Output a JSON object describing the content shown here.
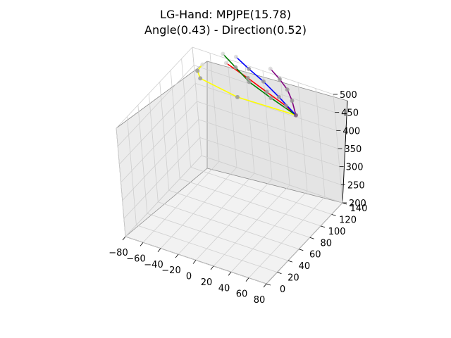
{
  "chart_data": {
    "type": "scatter",
    "projection": "3d",
    "title_lines": [
      "LG-Hand: MPJPE(15.78)",
      "Angle(0.43) - Direction(0.52)"
    ],
    "xlabel": "",
    "ylabel": "",
    "zlabel": "",
    "xlim": [
      -80,
      80
    ],
    "ylim": [
      0,
      140
    ],
    "zlim": [
      200,
      500
    ],
    "x_ticks": [
      "−80",
      "−60",
      "−40",
      "−20",
      "0",
      "20",
      "40",
      "60",
      "80"
    ],
    "y_ticks": [
      "0",
      "20",
      "40",
      "60",
      "80",
      "100",
      "120",
      "140"
    ],
    "z_ticks": [
      "200",
      "250",
      "300",
      "350",
      "400",
      "450",
      "500"
    ],
    "grid": true,
    "wrist": [
      55,
      110,
      470
    ],
    "series": [
      {
        "color": "#ffff00",
        "points": [
          [
            55,
            110,
            470
          ],
          [
            -15,
            115,
            455
          ],
          [
            -60,
            120,
            462
          ],
          [
            -66,
            125,
            470
          ],
          [
            -63,
            130,
            482
          ]
        ]
      },
      {
        "color": "#ff0000",
        "points": [
          [
            55,
            110,
            470
          ],
          [
            40,
            116,
            474
          ],
          [
            15,
            122,
            482
          ],
          [
            -10,
            128,
            491
          ],
          [
            -38,
            134,
            500
          ]
        ]
      },
      {
        "color": "#008000",
        "points": [
          [
            55,
            110,
            470
          ],
          [
            22,
            118,
            478
          ],
          [
            -6,
            124,
            490
          ],
          [
            -26,
            132,
            501
          ],
          [
            -45,
            140,
            510
          ]
        ]
      },
      {
        "color": "#0000ff",
        "points": [
          [
            55,
            110,
            470
          ],
          [
            30,
            120,
            484
          ],
          [
            8,
            128,
            496
          ],
          [
            -12,
            134,
            505
          ],
          [
            -30,
            140,
            514
          ]
        ]
      },
      {
        "color": "#800080",
        "points": [
          [
            55,
            110,
            470
          ],
          [
            45,
            120,
            486
          ],
          [
            35,
            128,
            496
          ],
          [
            23,
            134,
            505
          ],
          [
            9,
            140,
            513
          ]
        ]
      }
    ]
  }
}
